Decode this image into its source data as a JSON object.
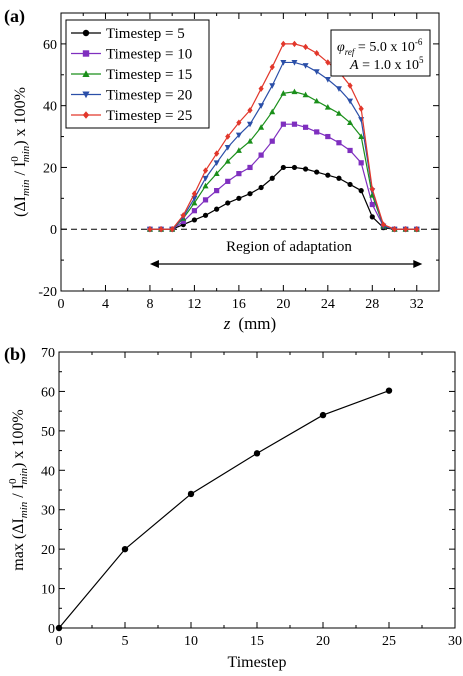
{
  "chart_data": [
    {
      "panel_label": "(a)",
      "type": "line",
      "xlabel_var": "z",
      "xlabel_unit": "(mm)",
      "ylabel_main": "(ΔI",
      "ylabel_sub1": "min",
      "ylabel_mid": " / I",
      "ylabel_sup": "0",
      "ylabel_sub2": "min",
      "ylabel_tail": ") x 100%",
      "xlim": [
        0,
        34
      ],
      "ylim": [
        -20,
        70
      ],
      "xticks": [
        "0",
        "4",
        "8",
        "12",
        "16",
        "20",
        "24",
        "28",
        "32"
      ],
      "yticks": [
        "-20",
        "0",
        "20",
        "40",
        "60"
      ],
      "annotation_phi": "φ",
      "annotation_phi_sub": "ref",
      "annotation_phi_val": " = 5.0 x 10",
      "annotation_phi_exp": "-6",
      "annotation_A": "A",
      "annotation_A_val": " = 1.0 x 10",
      "annotation_A_exp": "5",
      "region_label": "Region of adaptation",
      "region_range": [
        8,
        32.5
      ],
      "zero_line": true,
      "legend_position": "top-left",
      "x": [
        8,
        9,
        10,
        11,
        12,
        13,
        14,
        15,
        16,
        17,
        18,
        19,
        20,
        21,
        22,
        23,
        24,
        25,
        26,
        27,
        28,
        29,
        30,
        31,
        32
      ],
      "series": [
        {
          "name": "Timestep = 5",
          "color": "#000000",
          "marker": "circle",
          "values": [
            0,
            0,
            0,
            1.5,
            3,
            4.5,
            6.5,
            8.5,
            10,
            11.5,
            13.5,
            16.5,
            20,
            20,
            19.5,
            18.5,
            17.5,
            16.5,
            14.5,
            12.5,
            4,
            0.5,
            0,
            0,
            0
          ]
        },
        {
          "name": "Timestep = 10",
          "color": "#7f2fbf",
          "marker": "square",
          "values": [
            0,
            0,
            0,
            2.5,
            6,
            9.5,
            12.5,
            15.5,
            18,
            20,
            24,
            28.5,
            34,
            34,
            33,
            31.5,
            30,
            28,
            25.5,
            21.5,
            8,
            1,
            0,
            0,
            0
          ]
        },
        {
          "name": "Timestep = 15",
          "color": "#1a8f1a",
          "marker": "triangle-up",
          "values": [
            0,
            0,
            0,
            3.5,
            8.5,
            14,
            18,
            22,
            25.5,
            28.5,
            33,
            38,
            44,
            44.5,
            43.5,
            41.5,
            39.5,
            37.5,
            34.5,
            30,
            11,
            1,
            0,
            0,
            0
          ]
        },
        {
          "name": "Timestep = 20",
          "color": "#2b4fa8",
          "marker": "triangle-down",
          "values": [
            0,
            0,
            0,
            4,
            10,
            16.5,
            21.5,
            26.5,
            30.5,
            34,
            40,
            46.5,
            54,
            54,
            53,
            51,
            48.5,
            45.5,
            41.5,
            35.5,
            12.5,
            1,
            0,
            0,
            0
          ]
        },
        {
          "name": "Timestep = 25",
          "color": "#e2372b",
          "marker": "diamond",
          "values": [
            0,
            0,
            0,
            4.5,
            11.5,
            19,
            24.5,
            30,
            34.5,
            38.5,
            45.5,
            52.5,
            60,
            60,
            59,
            57,
            54,
            51,
            46.5,
            39,
            13,
            1.5,
            0,
            0,
            0
          ]
        }
      ]
    },
    {
      "panel_label": "(b)",
      "type": "line",
      "xlabel": "Timestep",
      "ylabel_main": "max (ΔI",
      "ylabel_sub1": "min",
      "ylabel_mid": " / I",
      "ylabel_sup": "0",
      "ylabel_sub2": "min",
      "ylabel_tail": ") x 100%",
      "xlim": [
        0,
        30
      ],
      "ylim": [
        0,
        70
      ],
      "xticks": [
        "0",
        "5",
        "10",
        "15",
        "20",
        "25",
        "30"
      ],
      "yticks": [
        "0",
        "10",
        "20",
        "30",
        "40",
        "50",
        "60",
        "70"
      ],
      "series": [
        {
          "color": "#000000",
          "marker": "circle",
          "x": [
            0,
            5,
            10,
            15,
            20,
            25
          ],
          "values": [
            0,
            20,
            34,
            44.3,
            54,
            60.2
          ]
        }
      ]
    }
  ]
}
